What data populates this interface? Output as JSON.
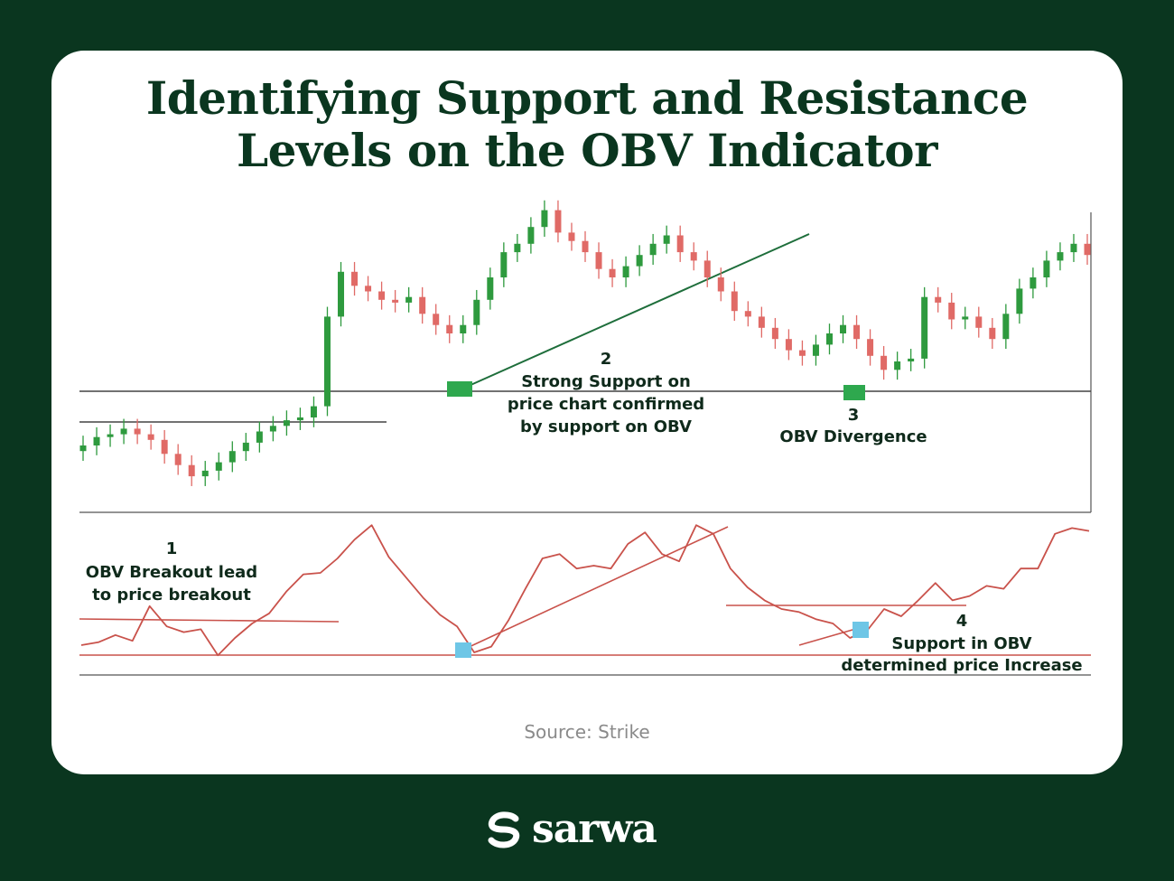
{
  "page": {
    "title_line1": "Identifying Support and Resistance",
    "title_line2": "Levels on the OBV Indicator",
    "source": "Source: Strike",
    "brand": "sarwa",
    "colors": {
      "background": "#0a361f",
      "card": "#ffffff",
      "bullish_candle": "#2e9a3e",
      "bearish_candle": "#e06a66",
      "obv_line": "#c9524b",
      "trendline_green": "#1e6e3b",
      "marker_green": "#2ea84e",
      "marker_blue": "#6ec6e6",
      "level_line": "#444444"
    }
  },
  "chart_data": [
    {
      "type": "candlestick",
      "panel": "price",
      "title": "",
      "xlabel": "",
      "ylabel": "",
      "grid": false,
      "legend": "none",
      "ylim": [
        0,
        100
      ],
      "close": [
        20,
        23,
        24,
        26,
        24,
        22,
        17,
        13,
        9,
        11,
        14,
        18,
        21,
        25,
        27,
        29,
        30,
        34,
        66,
        82,
        77,
        75,
        72,
        71,
        73,
        67,
        63,
        60,
        63,
        72,
        80,
        89,
        92,
        98,
        104,
        96,
        93,
        89,
        83,
        80,
        84,
        88,
        92,
        95,
        89,
        86,
        80,
        75,
        68,
        66,
        62,
        58,
        54,
        52,
        56,
        60,
        63,
        58,
        52,
        47,
        50,
        51,
        73,
        71,
        65,
        66,
        62,
        58,
        67,
        76,
        80,
        86,
        89,
        92,
        88
      ],
      "annotations": [
        {
          "number": "2",
          "text": [
            "Strong Support on",
            "price chart confirmed",
            "by support on OBV"
          ]
        },
        {
          "number": "3",
          "text": [
            "OBV Divergence"
          ]
        }
      ]
    },
    {
      "type": "line",
      "panel": "obv",
      "title": "",
      "xlabel": "",
      "ylabel": "",
      "grid": false,
      "legend": "none",
      "ylim": [
        0,
        100
      ],
      "values": [
        15,
        17,
        22,
        18,
        42,
        28,
        24,
        26,
        8,
        20,
        30,
        37,
        52,
        64,
        65,
        75,
        88,
        98,
        76,
        62,
        48,
        36,
        28,
        10,
        14,
        32,
        54,
        75,
        78,
        68,
        70,
        68,
        85,
        93,
        78,
        73,
        98,
        92,
        68,
        55,
        46,
        40,
        38,
        33,
        30,
        20,
        25,
        40,
        35,
        46,
        58,
        46,
        49,
        56,
        54,
        68,
        68,
        92,
        96,
        94
      ],
      "annotations": [
        {
          "number": "1",
          "text": [
            "OBV Breakout lead",
            "to price breakout"
          ]
        },
        {
          "number": "4",
          "text": [
            "Support in OBV",
            "determined price Increase"
          ]
        }
      ]
    }
  ]
}
